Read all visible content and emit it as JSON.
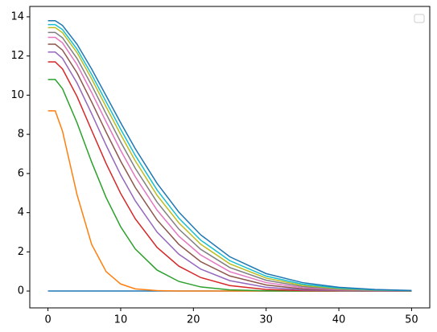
{
  "chart_data": {
    "type": "line",
    "x": [
      0,
      1,
      2,
      4,
      6,
      8,
      10,
      12,
      15,
      18,
      21,
      25,
      30,
      35,
      40,
      45,
      50
    ],
    "series": [
      {
        "color": "#1f77b4",
        "values": [
          0,
          0,
          0,
          0,
          0,
          0,
          0,
          0,
          0,
          0,
          0,
          0,
          0,
          0,
          0,
          0,
          0
        ]
      },
      {
        "color": "#ff7f0e",
        "values": [
          9.2,
          9.2,
          8.16,
          4.92,
          2.39,
          0.99,
          0.36,
          0.11,
          0.02,
          0,
          0,
          0,
          0,
          0,
          0,
          0,
          0
        ]
      },
      {
        "color": "#2ca02c",
        "values": [
          10.8,
          10.8,
          10.33,
          8.59,
          6.59,
          4.77,
          3.28,
          2.15,
          1.07,
          0.49,
          0.21,
          0.06,
          0.01,
          0,
          0,
          0,
          0
        ]
      },
      {
        "color": "#d62728",
        "values": [
          11.7,
          11.7,
          11.34,
          9.93,
          8.21,
          6.51,
          4.98,
          3.69,
          2.23,
          1.27,
          0.69,
          0.28,
          0.08,
          0.02,
          0.01,
          0,
          0
        ]
      },
      {
        "color": "#9467bd",
        "values": [
          12.2,
          12.2,
          11.88,
          10.62,
          9.06,
          7.44,
          5.93,
          4.61,
          3.01,
          1.88,
          1.12,
          0.53,
          0.19,
          0.06,
          0.02,
          0,
          0
        ]
      },
      {
        "color": "#8c564b",
        "values": [
          12.6,
          12.6,
          12.3,
          11.14,
          9.66,
          8.11,
          6.63,
          5.29,
          3.63,
          2.38,
          1.5,
          0.77,
          0.31,
          0.11,
          0.04,
          0.01,
          0
        ]
      },
      {
        "color": "#e377c2",
        "values": [
          12.95,
          12.95,
          12.67,
          11.56,
          10.14,
          8.64,
          7.18,
          5.84,
          4.13,
          2.8,
          1.84,
          0.99,
          0.43,
          0.17,
          0.06,
          0.02,
          0.01
        ]
      },
      {
        "color": "#7f7f7f",
        "values": [
          13.2,
          13.2,
          12.93,
          11.87,
          10.51,
          9.05,
          7.61,
          6.27,
          4.54,
          3.16,
          2.13,
          1.2,
          0.55,
          0.23,
          0.09,
          0.03,
          0.01
        ]
      },
      {
        "color": "#bcbd22",
        "values": [
          13.45,
          13.45,
          13.19,
          12.17,
          10.84,
          9.4,
          7.99,
          6.65,
          4.89,
          3.48,
          2.39,
          1.39,
          0.66,
          0.29,
          0.12,
          0.05,
          0.02
        ]
      },
      {
        "color": "#17becf",
        "values": [
          13.6,
          13.6,
          13.35,
          12.35,
          11.06,
          9.66,
          8.26,
          6.93,
          5.16,
          3.72,
          2.6,
          1.55,
          0.76,
          0.35,
          0.15,
          0.06,
          0.02
        ]
      },
      {
        "color": "#1f77b4",
        "values": [
          13.8,
          13.8,
          13.56,
          12.6,
          11.34,
          9.97,
          8.59,
          7.27,
          5.5,
          4.03,
          2.87,
          1.75,
          0.89,
          0.43,
          0.19,
          0.08,
          0.03
        ]
      }
    ],
    "xlim": [
      -2.5,
      52.5
    ],
    "xticks": [
      0,
      10,
      20,
      30,
      40,
      50
    ],
    "ylim": [
      -0.86,
      14.53
    ],
    "yticks": [
      0,
      2,
      4,
      6,
      8,
      10,
      12,
      14
    ],
    "legend": "upper right"
  }
}
